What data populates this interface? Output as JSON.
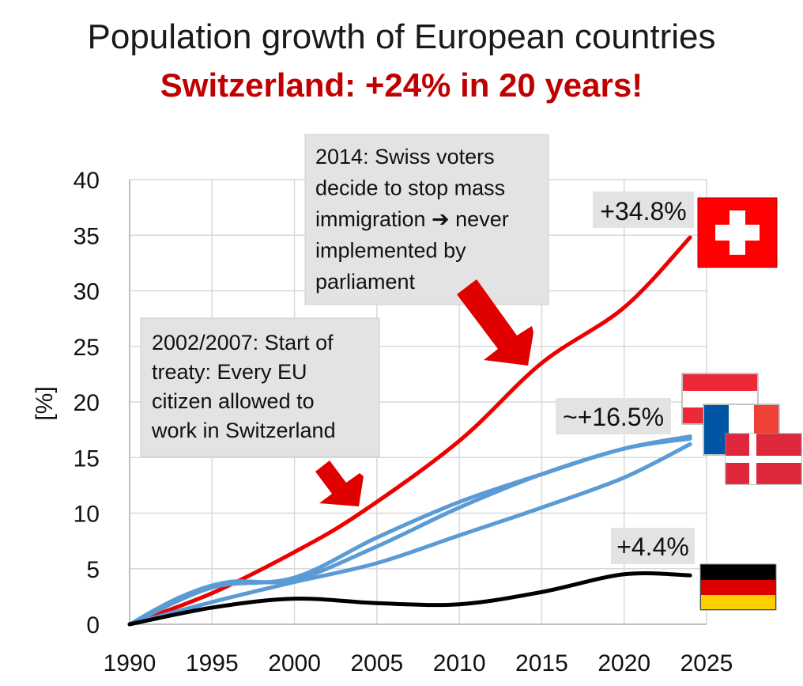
{
  "chart_data": {
    "type": "line",
    "title": "Population growth of European countries",
    "subtitle": "Switzerland: +24% in 20 years!",
    "xlabel": "",
    "ylabel": "[%]",
    "xlim": [
      1990,
      2025
    ],
    "ylim": [
      0,
      40
    ],
    "x_ticks": [
      "1990",
      "1995",
      "2000",
      "2005",
      "2010",
      "2015",
      "2020",
      "2025"
    ],
    "y_ticks": [
      "0",
      "5",
      "10",
      "15",
      "20",
      "25",
      "30",
      "35",
      "40"
    ],
    "grid": true,
    "series": [
      {
        "color": "#ee0000",
        "points": [
          [
            1990,
            0
          ],
          [
            1995,
            2.8
          ],
          [
            2000,
            6.5
          ],
          [
            2004,
            10.0
          ],
          [
            2010,
            16.5
          ],
          [
            2015,
            23.5
          ],
          [
            2020,
            28.5
          ],
          [
            2024,
            34.8
          ]
        ]
      },
      {
        "color": "#5b9bd5",
        "points": [
          [
            1990,
            0
          ],
          [
            1993,
            2.4
          ],
          [
            1996,
            3.8
          ],
          [
            2000,
            4.0
          ],
          [
            2005,
            7.0
          ],
          [
            2010,
            10.5
          ],
          [
            2015,
            13.5
          ],
          [
            2020,
            15.8
          ],
          [
            2024,
            16.9
          ]
        ]
      },
      {
        "color": "#5b9bd5",
        "points": [
          [
            1990,
            0
          ],
          [
            1995,
            3.3
          ],
          [
            2000,
            4.2
          ],
          [
            2005,
            7.8
          ],
          [
            2010,
            11.0
          ],
          [
            2015,
            13.5
          ],
          [
            2020,
            15.8
          ],
          [
            2024,
            16.7
          ]
        ]
      },
      {
        "color": "#5b9bd5",
        "points": [
          [
            1990,
            0
          ],
          [
            1995,
            2.0
          ],
          [
            2000,
            3.8
          ],
          [
            2005,
            5.5
          ],
          [
            2010,
            8.0
          ],
          [
            2015,
            10.5
          ],
          [
            2020,
            13.2
          ],
          [
            2024,
            16.2
          ]
        ]
      },
      {
        "color": "#000000",
        "points": [
          [
            1990,
            0
          ],
          [
            1995,
            1.5
          ],
          [
            2000,
            2.3
          ],
          [
            2005,
            1.9
          ],
          [
            2010,
            1.8
          ],
          [
            2015,
            2.9
          ],
          [
            2020,
            4.5
          ],
          [
            2024,
            4.4
          ]
        ]
      }
    ],
    "annotations": [
      {
        "id": "ann1",
        "lines": [
          "2002/2007: Start of",
          "treaty: Every EU",
          "citizen allowed to",
          "work in Switzerland"
        ]
      },
      {
        "id": "ann2",
        "lines": [
          "2014: Swiss voters",
          "decide to stop mass",
          "immigration ➔ never",
          "implemented by",
          "parliament"
        ]
      }
    ],
    "end_labels": {
      "switzerland": "+34.8%",
      "others": "~+16.5%",
      "germany": "+4.4%"
    }
  },
  "colors": {
    "swiss": "#ee0000",
    "others": "#5b9bd5",
    "germany": "#000000",
    "title_accent": "#c00000",
    "arrow": "#e00000",
    "callout": "#e3e3e3"
  },
  "flags": [
    "switzerland-flag",
    "austria-flag",
    "france-flag",
    "denmark-flag",
    "germany-flag"
  ]
}
